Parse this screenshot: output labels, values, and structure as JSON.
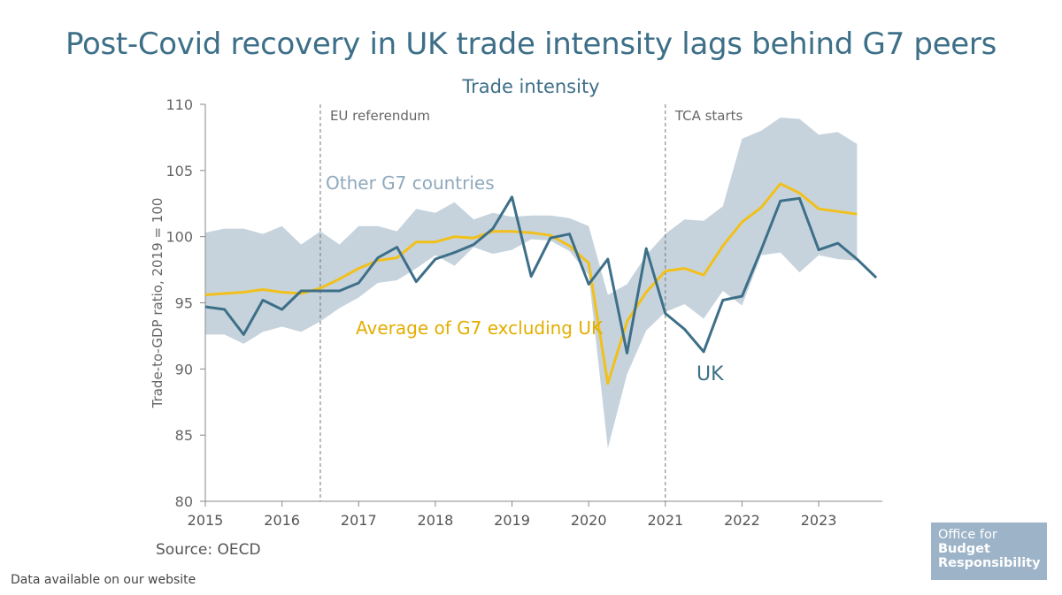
{
  "title": "Post-Covid recovery in UK trade intensity lags behind G7 peers",
  "subtitle": "Trade intensity",
  "source": "Source: OECD",
  "footnote": "Data available on our website",
  "logo": {
    "line1": "Office for",
    "line2": "Budget",
    "line3": "Responsibility"
  },
  "colors": {
    "uk": "#3d6f88",
    "g7_average": "#f2c01a",
    "g7_range": "#c6d3dd",
    "range_label": "#8fa9bd",
    "axis": "#666666",
    "logo_bg": "#9db3c7"
  },
  "chart_data": {
    "type": "line",
    "title": "Trade intensity",
    "xlabel": "",
    "ylabel": "Trade-to-GDP ratio, 2019 = 100",
    "xlim": [
      2015.0,
      2023.83
    ],
    "ylim": [
      80,
      110
    ],
    "yticks": [
      80,
      85,
      90,
      95,
      100,
      105,
      110
    ],
    "xticks": [
      "2015",
      "2016",
      "2017",
      "2018",
      "2019",
      "2020",
      "2021",
      "2022",
      "2023"
    ],
    "grid": false,
    "x": [
      2015.0,
      2015.25,
      2015.5,
      2015.75,
      2016.0,
      2016.25,
      2016.5,
      2016.75,
      2017.0,
      2017.25,
      2017.5,
      2017.75,
      2018.0,
      2018.25,
      2018.5,
      2018.75,
      2019.0,
      2019.25,
      2019.5,
      2019.75,
      2020.0,
      2020.25,
      2020.5,
      2020.75,
      2021.0,
      2021.25,
      2021.5,
      2021.75,
      2022.0,
      2022.25,
      2022.5,
      2022.75,
      2023.0,
      2023.25,
      2023.5,
      2023.75
    ],
    "series": [
      {
        "name": "UK",
        "values": [
          94.7,
          94.5,
          92.6,
          95.2,
          94.5,
          95.9,
          95.9,
          95.9,
          96.5,
          98.4,
          99.2,
          96.6,
          98.3,
          98.8,
          99.4,
          100.6,
          103.0,
          97.0,
          99.9,
          100.2,
          96.4,
          98.3,
          91.2,
          99.1,
          94.2,
          93.0,
          91.3,
          95.2,
          95.5,
          99.0,
          102.7,
          102.9,
          99.0,
          99.5,
          98.3,
          96.9
        ]
      },
      {
        "name": "Average of G7 excluding UK",
        "values": [
          95.6,
          95.7,
          95.8,
          96.0,
          95.8,
          95.7,
          96.1,
          96.8,
          97.6,
          98.2,
          98.4,
          99.6,
          99.6,
          100.0,
          99.9,
          100.4,
          100.4,
          100.3,
          100.1,
          99.3,
          98.0,
          88.9,
          93.6,
          95.8,
          97.4,
          97.6,
          97.1,
          99.3,
          101.1,
          102.2,
          104.0,
          103.3,
          102.1,
          101.9,
          101.7,
          null
        ]
      },
      {
        "name": "Other G7 countries",
        "type": "range",
        "upper": [
          100.3,
          100.6,
          100.6,
          100.2,
          100.8,
          99.4,
          100.4,
          99.4,
          100.8,
          100.8,
          100.4,
          102.1,
          101.8,
          102.6,
          101.3,
          101.8,
          101.5,
          101.6,
          101.6,
          101.4,
          100.8,
          95.6,
          96.4,
          98.6,
          100.2,
          101.3,
          101.2,
          102.3,
          107.4,
          108.0,
          109.0,
          108.9,
          107.7,
          107.9,
          107.0,
          null
        ],
        "lower": [
          92.6,
          92.6,
          91.9,
          92.8,
          93.2,
          92.8,
          93.6,
          94.6,
          95.4,
          96.5,
          96.7,
          97.6,
          98.6,
          97.8,
          99.2,
          98.7,
          99.0,
          99.8,
          99.7,
          98.9,
          97.1,
          84.0,
          89.6,
          92.9,
          94.3,
          94.9,
          93.8,
          95.9,
          94.8,
          98.6,
          98.8,
          97.3,
          98.6,
          98.3,
          98.2,
          null
        ]
      }
    ],
    "annotations": [
      {
        "x": 2016.5,
        "label": "EU referendum"
      },
      {
        "x": 2021.0,
        "label": "TCA starts"
      }
    ],
    "series_labels": {
      "range": "Other G7 countries",
      "g7_average": "Average of G7 excluding UK",
      "uk": "UK"
    }
  }
}
